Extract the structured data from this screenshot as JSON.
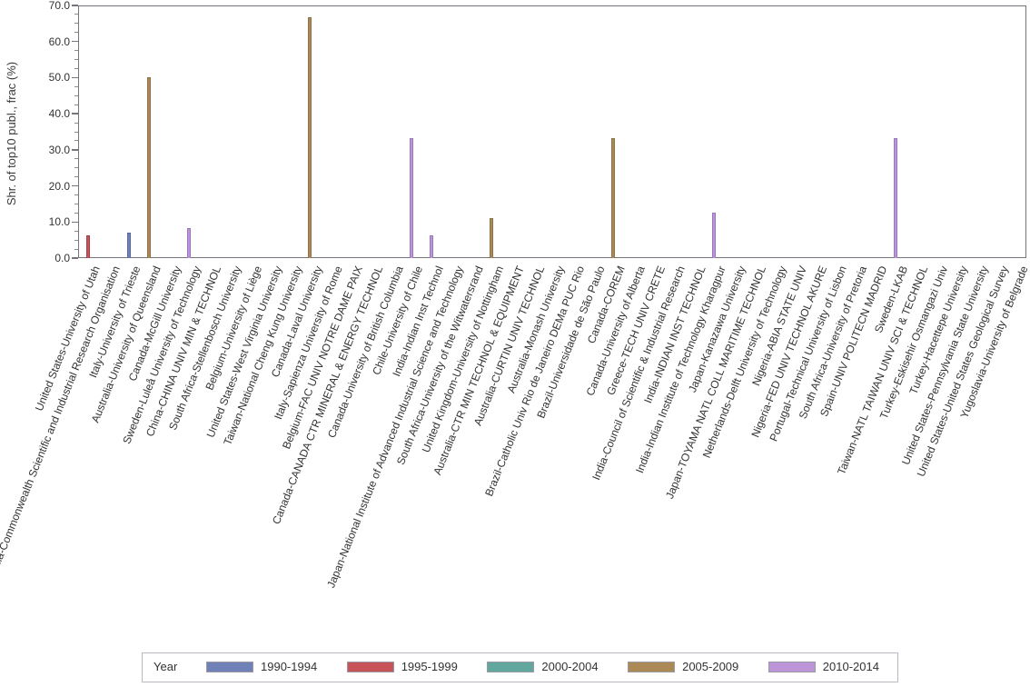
{
  "chart_data": {
    "type": "bar",
    "title": "",
    "xlabel": "",
    "ylabel": "Shr. of top10 publ., frac (%)",
    "ylim": [
      0,
      70
    ],
    "ytick_labels": [
      "0.0",
      "10.0",
      "20.0",
      "30.0",
      "40.0",
      "50.0",
      "60.0",
      "70.0"
    ],
    "ytick_values": [
      0,
      10,
      20,
      30,
      40,
      50,
      60,
      70
    ],
    "ytick_minor_step": 2.5,
    "grid": false,
    "legend_position": "bottom",
    "legend_title": "Year",
    "series": [
      {
        "name": "1990-1994",
        "color": "#7081B7",
        "border": "#5A699C"
      },
      {
        "name": "1995-1999",
        "color": "#C75358",
        "border": "#A43E46"
      },
      {
        "name": "2000-2004",
        "color": "#62A79D",
        "border": "#4E8A81"
      },
      {
        "name": "2005-2009",
        "color": "#AC8A58",
        "border": "#8E7146"
      },
      {
        "name": "2010-2014",
        "color": "#BC95D8",
        "border": "#9D77BE"
      }
    ],
    "categories": [
      "United States-University of Utah",
      "Australia-Commonwealth Scientific and Industrial Research Organisation",
      "Italy-University of Trieste",
      "Australia-University of Queensland",
      "Canada-McGill University",
      "Sweden-Luleå University of Technology",
      "China-CHINA UNIV MIN & TECHNOL",
      "South Africa-Stellenbosch University",
      "Belgium-University of Liège",
      "United States-West Virginia University",
      "Taiwan-National Cheng Kung University",
      "Canada-Laval University",
      "Italy-Sapienza University of Rome",
      "Belgium-FAC UNIV NOTRE DAME PAIX",
      "Canada-CANADA CTR MINERAL & ENERGY TECHNOL",
      "Canada-University of British Columbia",
      "Chile-University of Chile",
      "India-Indian Inst Technol",
      "Japan-National Institute of Advanced Industrial Science and Technology",
      "South Africa-University of the Witwatersrand",
      "United Kingdom-University of Nottingham",
      "Australia-CTR MIN TECHNOL & EQUIPMENT",
      "Australia-CURTIN UNIV TECHNOL",
      "Australia-Monash University",
      "Brazil-Catholic Univ Rio de Janeiro DEMa PUC Rio",
      "Brazil-Universidade de São Paulo",
      "Canada-COREM",
      "Canada-University of Alberta",
      "Greece-TECH UNIV CRETE",
      "India-Council of Scientific & Industrial Research",
      "India-INDIAN INST TECHNOL",
      "India-Indian Institute of Technology Kharagpur",
      "Japan-Kanazawa University",
      "Japan-TOYAMA NATL COLL MARITIME TECHNOL",
      "Netherlands-Delft University of Technology",
      "Nigeria-ABIA STATE UNIV",
      "Nigeria-FED UNIV TECHNOL AKURE",
      "Portugal-Technical University of Lisbon",
      "South Africa-University of Pretoria",
      "Spain-UNIV POLITECN MADRID",
      "Sweden-LKAB",
      "Taiwan-NATL TAIWAN UNIV SCI & TECHNOL",
      "Turkey-Eskisehir Osmangazi Univ",
      "Turkey-Hacettepe University",
      "United States-Pennsylvania State University",
      "United States-United States Geological Survey",
      "Yugoslavia-University of Belgrade"
    ],
    "bars": [
      {
        "category": "United States-University of Utah",
        "series": "1995-1999",
        "value": 6.3
      },
      {
        "category": "Italy-University of Trieste",
        "series": "1990-1994",
        "value": 7.1
      },
      {
        "category": "Australia-University of Queensland",
        "series": "2005-2009",
        "value": 50.0
      },
      {
        "category": "Sweden-Luleå University of Technology",
        "series": "2010-2014",
        "value": 8.3
      },
      {
        "category": "Canada-Laval University",
        "series": "2005-2009",
        "value": 66.7
      },
      {
        "category": "Chile-University of Chile",
        "series": "2010-2014",
        "value": 33.3
      },
      {
        "category": "India-Indian Inst Technol",
        "series": "2010-2014",
        "value": 6.3
      },
      {
        "category": "United Kingdom-University of Nottingham",
        "series": "2005-2009",
        "value": 11.1
      },
      {
        "category": "Canada-COREM",
        "series": "2005-2009",
        "value": 33.3
      },
      {
        "category": "India-Indian Institute of Technology Kharagpur",
        "series": "2010-2014",
        "value": 12.5
      },
      {
        "category": "Sweden-LKAB",
        "series": "2010-2014",
        "value": 33.3
      }
    ]
  }
}
